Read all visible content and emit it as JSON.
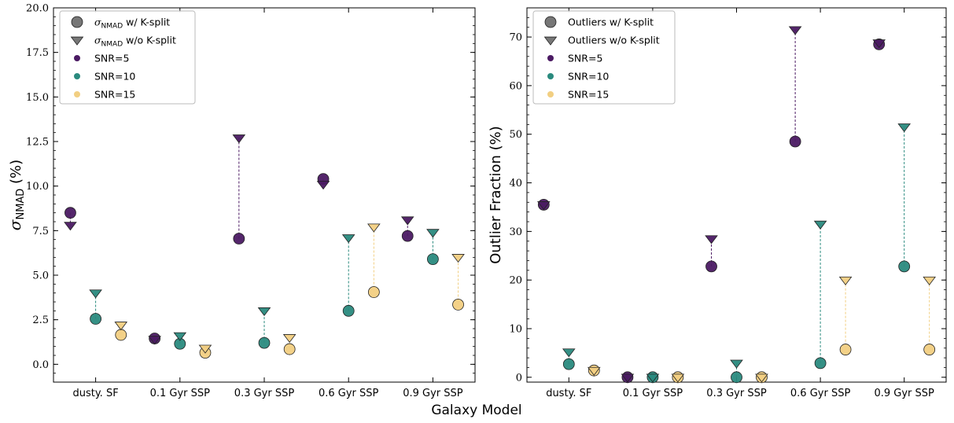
{
  "xlabel": "Galaxy Model",
  "colors": {
    "SNR=5": "#4b1a63",
    "SNR=10": "#2a8a7e",
    "SNR=15": "#f2cf82"
  },
  "chart_data": [
    {
      "type": "scatter",
      "ylabel_main": "σ",
      "ylabel_sub": "NMAD",
      "ylabel_unit": "(%)",
      "ylim": [
        -1,
        20
      ],
      "yticks": [
        "0.0",
        "2.5",
        "5.0",
        "7.5",
        "10.0",
        "12.5",
        "15.0",
        "17.5",
        "20.0"
      ],
      "categories": [
        "dusty. SF",
        "0.1 Gyr SSP",
        "0.3 Gyr SSP",
        "0.6 Gyr SSP",
        "0.9 Gyr SSP"
      ],
      "legend": {
        "position": "top-left",
        "entries": [
          {
            "marker": "circle",
            "main": "σ",
            "sub": "NMAD",
            "rest": " w/ K-split"
          },
          {
            "marker": "triangle",
            "main": "σ",
            "sub": "NMAD",
            "rest": " w/o K-split"
          },
          {
            "marker": "dot",
            "series": "SNR=5",
            "rest": "SNR=5"
          },
          {
            "marker": "dot",
            "series": "SNR=10",
            "rest": "SNR=10"
          },
          {
            "marker": "dot",
            "series": "SNR=15",
            "rest": "SNR=15"
          }
        ]
      },
      "series": [
        {
          "name": "SNR=5",
          "with_ksplit": [
            8.5,
            1.45,
            7.05,
            10.4,
            7.2
          ],
          "without_ksplit": [
            7.8,
            1.4,
            12.7,
            10.1,
            8.1
          ]
        },
        {
          "name": "SNR=10",
          "with_ksplit": [
            2.55,
            1.15,
            1.2,
            3.0,
            5.9
          ],
          "without_ksplit": [
            4.0,
            1.6,
            3.0,
            7.1,
            7.4
          ]
        },
        {
          "name": "SNR=15",
          "with_ksplit": [
            1.65,
            0.65,
            0.85,
            4.05,
            3.35
          ],
          "without_ksplit": [
            2.2,
            0.9,
            1.5,
            7.7,
            6.0
          ]
        }
      ]
    },
    {
      "type": "scatter",
      "ylabel_main": "Outlier Fraction (%)",
      "ylim": [
        -1,
        76
      ],
      "yticks": [
        "0",
        "10",
        "20",
        "30",
        "40",
        "50",
        "60",
        "70"
      ],
      "categories": [
        "dusty. SF",
        "0.1 Gyr SSP",
        "0.3 Gyr SSP",
        "0.6 Gyr SSP",
        "0.9 Gyr SSP"
      ],
      "legend": {
        "position": "top-left",
        "entries": [
          {
            "marker": "circle",
            "rest": "Outliers w/ K-split"
          },
          {
            "marker": "triangle",
            "rest": "Outliers w/o K-split"
          },
          {
            "marker": "dot",
            "series": "SNR=5",
            "rest": "SNR=5"
          },
          {
            "marker": "dot",
            "series": "SNR=10",
            "rest": "SNR=10"
          },
          {
            "marker": "dot",
            "series": "SNR=15",
            "rest": "SNR=15"
          }
        ]
      },
      "series": [
        {
          "name": "SNR=5",
          "with_ksplit": [
            35.5,
            0,
            22.8,
            48.5,
            68.5
          ],
          "without_ksplit": [
            35.5,
            0,
            28.5,
            71.5,
            68.8
          ]
        },
        {
          "name": "SNR=10",
          "with_ksplit": [
            2.7,
            0,
            0,
            2.9,
            22.8
          ],
          "without_ksplit": [
            5.2,
            0,
            2.9,
            31.5,
            51.5
          ]
        },
        {
          "name": "SNR=15",
          "with_ksplit": [
            1.4,
            0,
            0,
            5.7,
            5.7
          ],
          "without_ksplit": [
            1.4,
            0,
            0,
            20.0,
            20.0
          ]
        }
      ]
    }
  ]
}
